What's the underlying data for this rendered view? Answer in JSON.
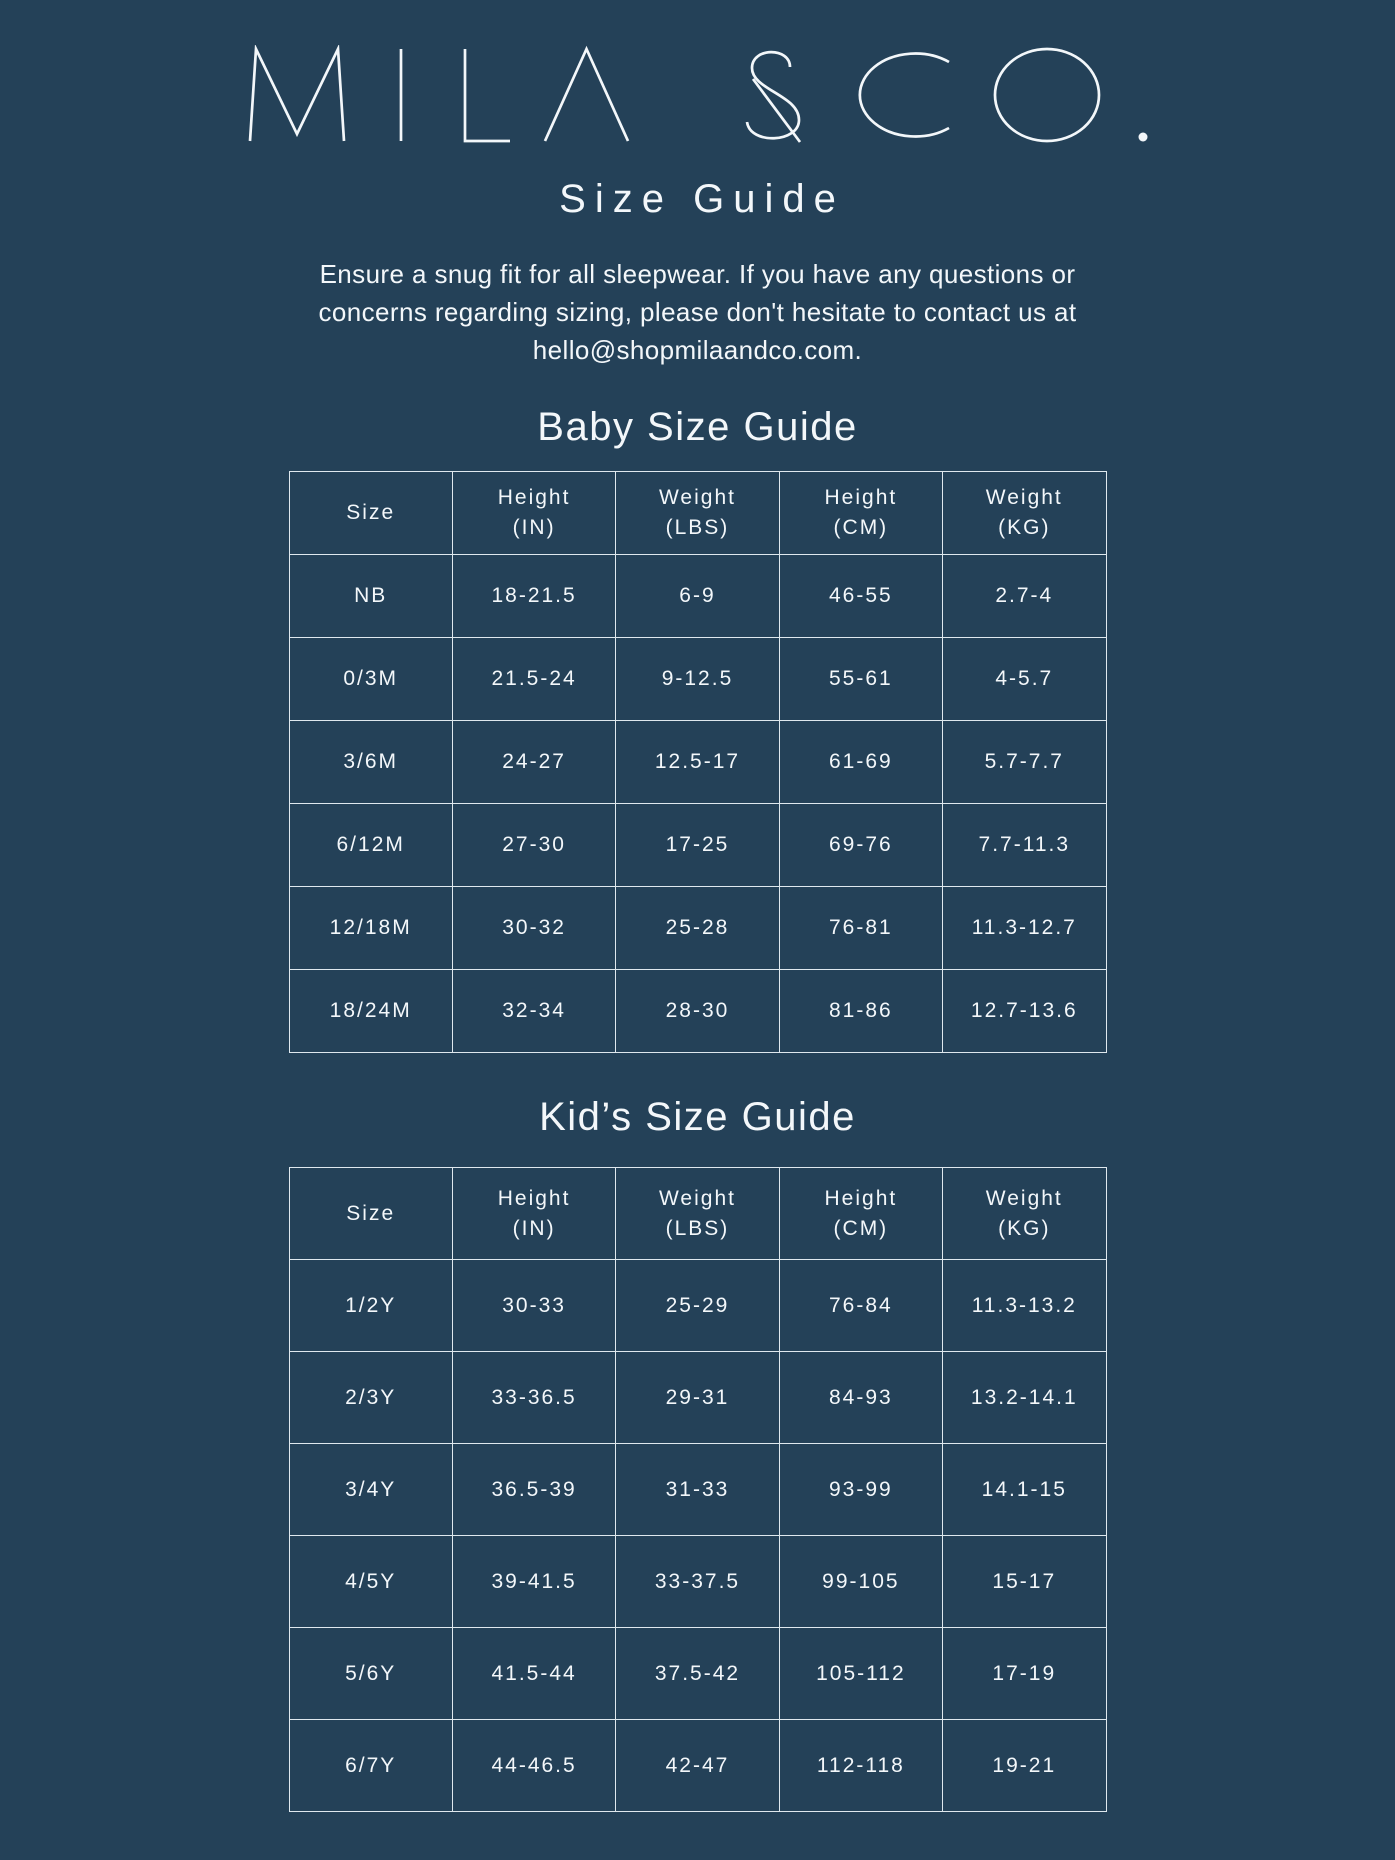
{
  "page": {
    "background_color": "#244158",
    "text_color": "#f3f7fa",
    "table_border_color": "#dfe8ee"
  },
  "header": {
    "brand": "MILA & CO.",
    "title": "Size Guide",
    "description_lines": [
      "Ensure a snug fit for all sleepwear. If you have any questions or",
      "concerns regarding sizing, please don't hesitate to contact us at",
      "hello@shopmilaandco.com."
    ],
    "contact_email": "hello@shopmilaandco.com"
  },
  "baby_table": {
    "heading": "Baby Size Guide",
    "columns": [
      {
        "label": "Size",
        "unit": ""
      },
      {
        "label": "Height",
        "unit": "(IN)"
      },
      {
        "label": "Weight",
        "unit": "(LBS)"
      },
      {
        "label": "Height",
        "unit": "(CM)"
      },
      {
        "label": "Weight",
        "unit": "(KG)"
      }
    ],
    "rows": [
      [
        "NB",
        "18-21.5",
        "6-9",
        "46-55",
        "2.7-4"
      ],
      [
        "0/3M",
        "21.5-24",
        "9-12.5",
        "55-61",
        "4-5.7"
      ],
      [
        "3/6M",
        "24-27",
        "12.5-17",
        "61-69",
        "5.7-7.7"
      ],
      [
        "6/12M",
        "27-30",
        "17-25",
        "69-76",
        "7.7-11.3"
      ],
      [
        "12/18M",
        "30-32",
        "25-28",
        "76-81",
        "11.3-12.7"
      ],
      [
        "18/24M",
        "32-34",
        "28-30",
        "81-86",
        "12.7-13.6"
      ]
    ]
  },
  "kids_table": {
    "heading": "Kid’s Size Guide",
    "columns": [
      {
        "label": "Size",
        "unit": ""
      },
      {
        "label": "Height",
        "unit": "(IN)"
      },
      {
        "label": "Weight",
        "unit": "(LBS)"
      },
      {
        "label": "Height",
        "unit": "(CM)"
      },
      {
        "label": "Weight",
        "unit": "(KG)"
      }
    ],
    "rows": [
      [
        "1/2Y",
        "30-33",
        "25-29",
        "76-84",
        "11.3-13.2"
      ],
      [
        "2/3Y",
        "33-36.5",
        "29-31",
        "84-93",
        "13.2-14.1"
      ],
      [
        "3/4Y",
        "36.5-39",
        "31-33",
        "93-99",
        "14.1-15"
      ],
      [
        "4/5Y",
        "39-41.5",
        "33-37.5",
        "99-105",
        "15-17"
      ],
      [
        "5/6Y",
        "41.5-44",
        "37.5-42",
        "105-112",
        "17-19"
      ],
      [
        "6/7Y",
        "44-46.5",
        "42-47",
        "112-118",
        "19-21"
      ]
    ]
  }
}
